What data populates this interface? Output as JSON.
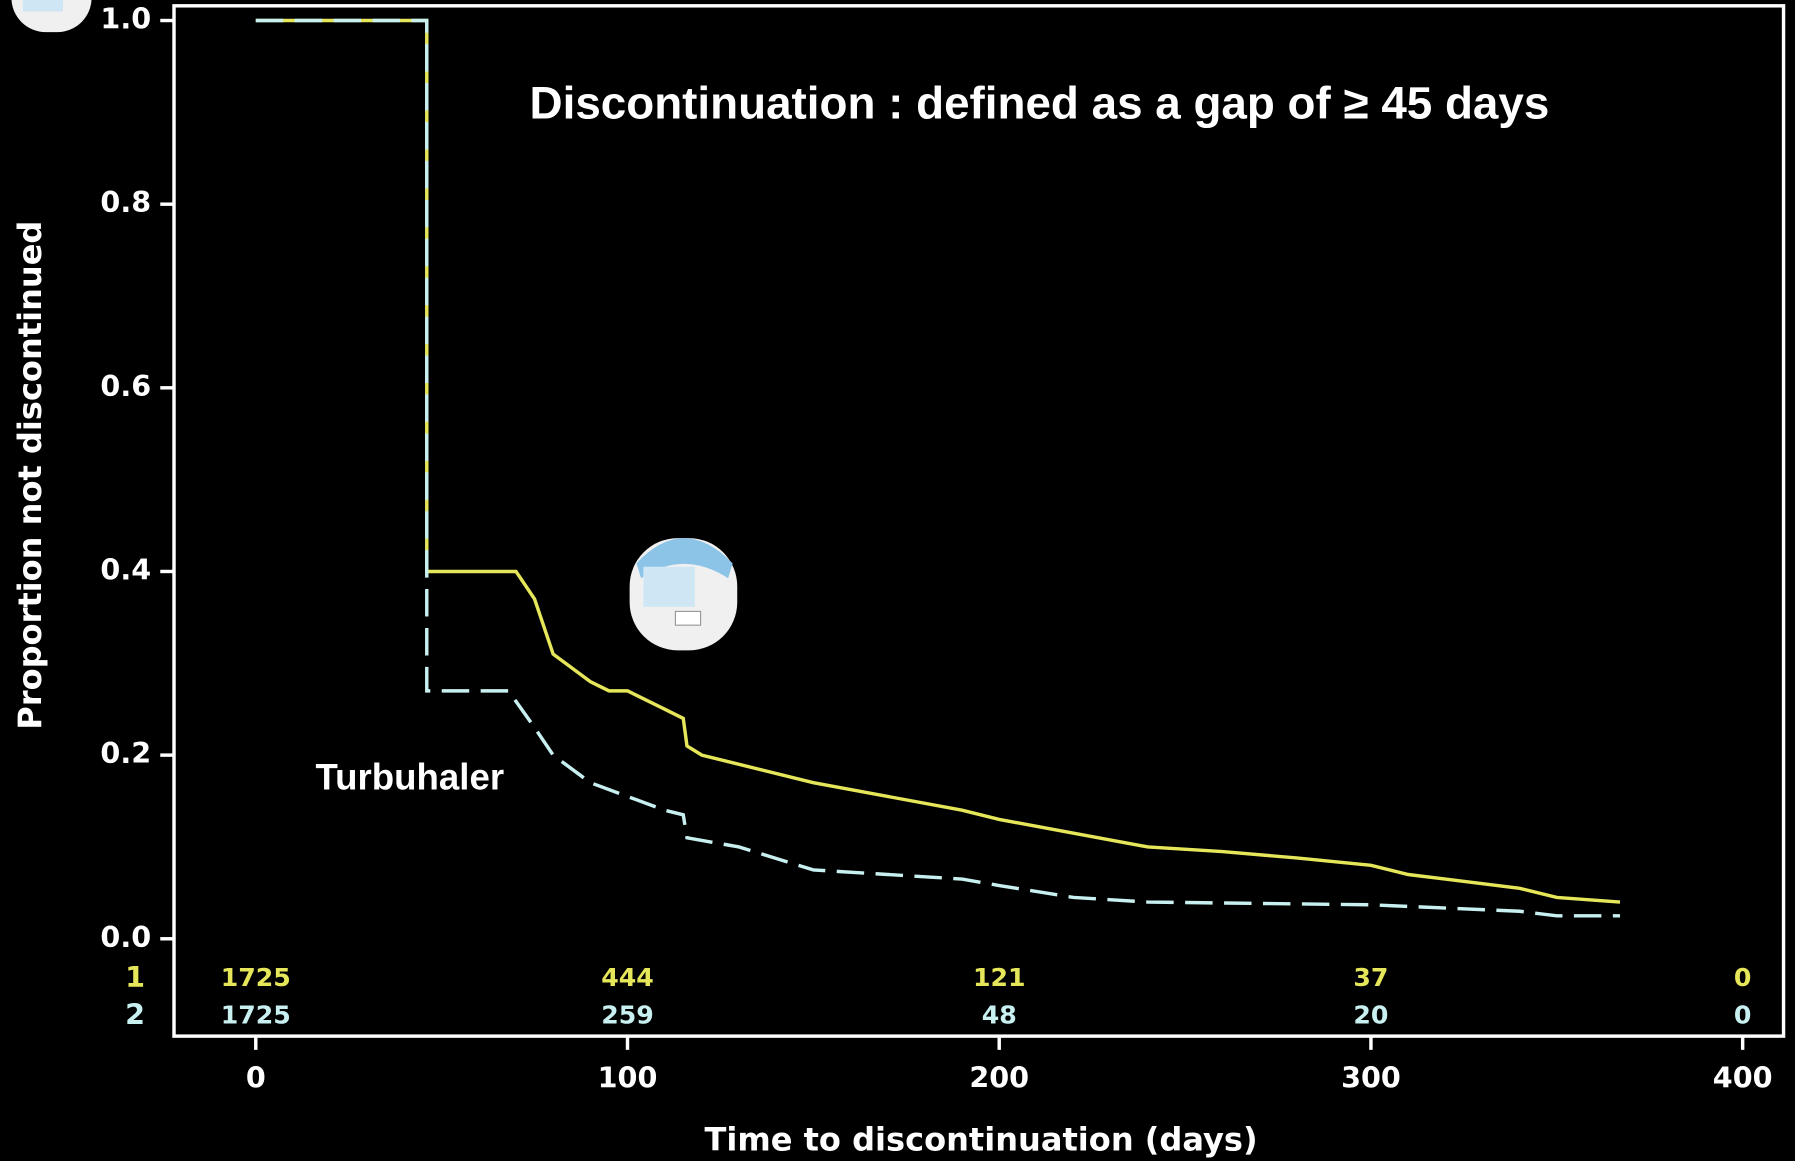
{
  "chart_data": {
    "type": "line",
    "annotations": [
      "Discontinuation : defined as a gap of ≥ 45 days",
      "Turbuhaler"
    ],
    "xlabel": "Time to discontinuation (days)",
    "ylabel": "Proportion not discontinued",
    "xlim": [
      -22,
      411
    ],
    "ylim": [
      -0.106,
      1.016
    ],
    "xticks": [
      0,
      100,
      200,
      300,
      400
    ],
    "yticks": [
      {
        "value": 0,
        "label": "0.0"
      },
      0.2,
      0.4,
      0.6,
      0.8,
      {
        "value": 1,
        "label": "1.0"
      }
    ],
    "at_risk_x": [
      0,
      100,
      200,
      300,
      400
    ],
    "series": [
      {
        "name": "1",
        "color": "#e6e65a",
        "dashed": false,
        "x": [
          0,
          46,
          46,
          70,
          75,
          80,
          90,
          95,
          100,
          110,
          115,
          116,
          120,
          130,
          150,
          170,
          190,
          200,
          220,
          240,
          260,
          280,
          300,
          310,
          320,
          340,
          350,
          367
        ],
        "values": [
          1,
          1,
          0.4,
          0.4,
          0.37,
          0.31,
          0.28,
          0.27,
          0.27,
          0.25,
          0.24,
          0.21,
          0.2,
          0.19,
          0.17,
          0.155,
          0.14,
          0.13,
          0.115,
          0.1,
          0.095,
          0.088,
          0.08,
          0.07,
          0.065,
          0.055,
          0.045,
          0.04
        ],
        "at_risk": [
          1725,
          444,
          121,
          37,
          0
        ]
      },
      {
        "name": "2",
        "color": "#c8f0f0",
        "dashed": true,
        "x": [
          0,
          46,
          46,
          68,
          75,
          80,
          90,
          100,
          110,
          115,
          116,
          130,
          150,
          170,
          190,
          200,
          220,
          240,
          300,
          340,
          350,
          367
        ],
        "values": [
          1,
          1,
          0.27,
          0.27,
          0.23,
          0.2,
          0.17,
          0.155,
          0.14,
          0.135,
          0.11,
          0.1,
          0.075,
          0.07,
          0.065,
          0.058,
          0.045,
          0.04,
          0.037,
          0.03,
          0.025,
          0.025
        ],
        "at_risk": [
          1725,
          259,
          48,
          20,
          0
        ]
      }
    ]
  }
}
